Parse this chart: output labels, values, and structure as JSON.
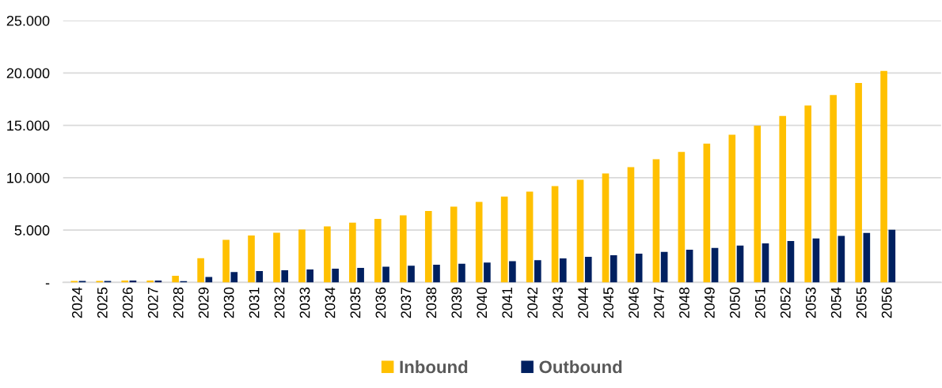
{
  "chart_data": {
    "type": "bar",
    "categories": [
      "2024",
      "2025",
      "2026",
      "2027",
      "2028",
      "2029",
      "2030",
      "2031",
      "2032",
      "2033",
      "2034",
      "2035",
      "2036",
      "2037",
      "2038",
      "2039",
      "2040",
      "2041",
      "2042",
      "2043",
      "2044",
      "2045",
      "2046",
      "2047",
      "2048",
      "2049",
      "2050",
      "2051",
      "2052",
      "2053",
      "2054",
      "2055",
      "2056",
      null,
      null
    ],
    "series": [
      {
        "name": "Inbound",
        "color": "#ffc000",
        "values": [
          150,
          150,
          180,
          180,
          630,
          2310,
          4060,
          4490,
          4750,
          5050,
          5350,
          5710,
          6070,
          6400,
          6830,
          7230,
          7690,
          8200,
          8670,
          9200,
          9800,
          10400,
          11000,
          11760,
          12470,
          13250,
          14100,
          14960,
          15900,
          16900,
          17900,
          19050,
          20200,
          null,
          null
        ]
      },
      {
        "name": "Outbound",
        "color": "#002060",
        "values": [
          150,
          150,
          180,
          180,
          130,
          530,
          990,
          1090,
          1170,
          1240,
          1320,
          1400,
          1500,
          1600,
          1700,
          1780,
          1900,
          2030,
          2130,
          2290,
          2440,
          2590,
          2740,
          2920,
          3130,
          3300,
          3530,
          3730,
          3950,
          4200,
          4450,
          4730,
          5040,
          null,
          null
        ]
      }
    ],
    "ylim": [
      0,
      25000
    ],
    "yticks": [
      {
        "value": 0,
        "label": "-"
      },
      {
        "value": 5000,
        "label": "5.000"
      },
      {
        "value": 10000,
        "label": "10.000"
      },
      {
        "value": 15000,
        "label": "15.000"
      },
      {
        "value": 20000,
        "label": "20.000"
      },
      {
        "value": 25000,
        "label": "25.000"
      }
    ],
    "grid": "y",
    "legend": "bottom"
  }
}
